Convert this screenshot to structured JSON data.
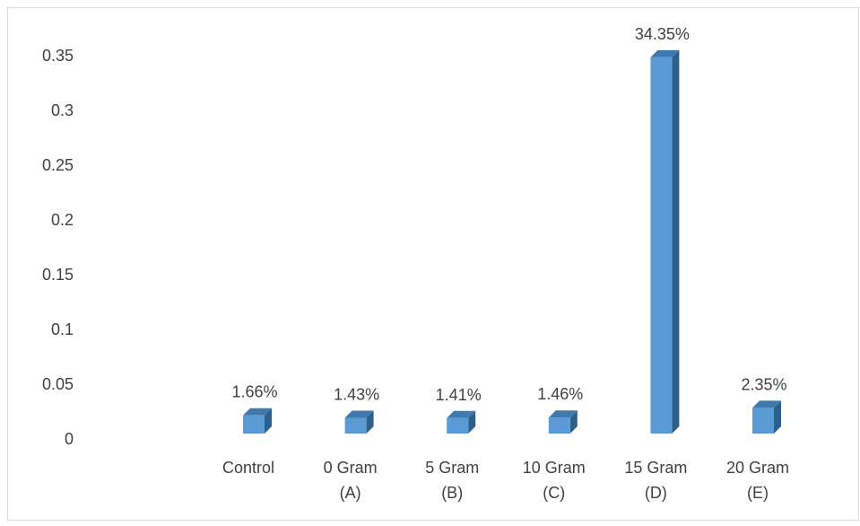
{
  "chart_data": {
    "type": "bar",
    "style": "3d-column",
    "title": "",
    "xlabel": "",
    "ylabel": "",
    "categories": [
      [
        "Control"
      ],
      [
        "0 Gram",
        "(A)"
      ],
      [
        "5 Gram",
        "(B)"
      ],
      [
        "10 Gram",
        "(C)"
      ],
      [
        "15 Gram",
        "(D)"
      ],
      [
        "20 Gram",
        "(E)"
      ]
    ],
    "values": [
      0.0166,
      0.0143,
      0.0141,
      0.0146,
      0.3435,
      0.0235
    ],
    "data_labels": [
      "1.66%",
      "1.43%",
      "1.41%",
      "1.46%",
      "34.35%",
      "2.35%"
    ],
    "ylim": [
      0,
      0.35
    ],
    "yticks": [
      {
        "value": 0,
        "label": "0"
      },
      {
        "value": 0.05,
        "label": "0.05"
      },
      {
        "value": 0.1,
        "label": "0.1"
      },
      {
        "value": 0.15,
        "label": "0.15"
      },
      {
        "value": 0.2,
        "label": "0.2"
      },
      {
        "value": 0.25,
        "label": "0.25"
      },
      {
        "value": 0.3,
        "label": "0.3"
      },
      {
        "value": 0.35,
        "label": "0.35"
      }
    ],
    "grid": false,
    "legend": "none",
    "colors": {
      "front": "#5b9bd5",
      "side": "#2e5f8a",
      "top": "#3f79ad",
      "text": "#404040",
      "frame": "#d9d9d9"
    }
  }
}
